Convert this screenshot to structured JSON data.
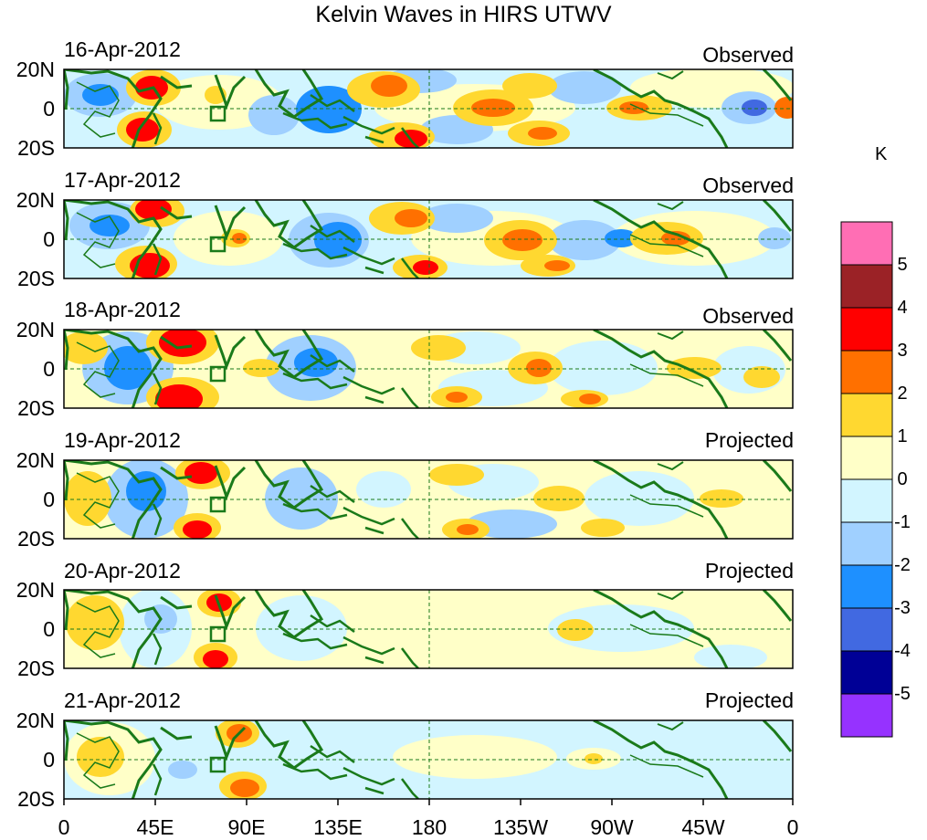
{
  "title": "Kelvin Waves in HIRS UTWV",
  "units": "K",
  "panels": [
    {
      "date": "16-Apr-2012",
      "mode": "Observed"
    },
    {
      "date": "17-Apr-2012",
      "mode": "Observed"
    },
    {
      "date": "18-Apr-2012",
      "mode": "Observed"
    },
    {
      "date": "19-Apr-2012",
      "mode": "Projected"
    },
    {
      "date": "20-Apr-2012",
      "mode": "Projected"
    },
    {
      "date": "21-Apr-2012",
      "mode": "Projected"
    }
  ],
  "lat_labels": [
    "20N",
    "0",
    "20S"
  ],
  "lon_labels": [
    "0",
    "45E",
    "90E",
    "135E",
    "180",
    "135W",
    "90W",
    "45W",
    "0"
  ],
  "colorbar": {
    "labels": [
      "5",
      "4",
      "3",
      "2",
      "1",
      "0",
      "-1",
      "-2",
      "-3",
      "-4",
      "-5"
    ],
    "colors": [
      "#ff6eb4",
      "#9b2226",
      "#ff0000",
      "#ff7000",
      "#ffd830",
      "#ffffc8",
      "#d2f5ff",
      "#a0d0ff",
      "#1e90ff",
      "#4169e1",
      "#000096",
      "#9632ff"
    ]
  },
  "colors": {
    "coast": "#1a7a1a",
    "frame": "#000000",
    "equator_line": "#1a7a1a"
  }
}
